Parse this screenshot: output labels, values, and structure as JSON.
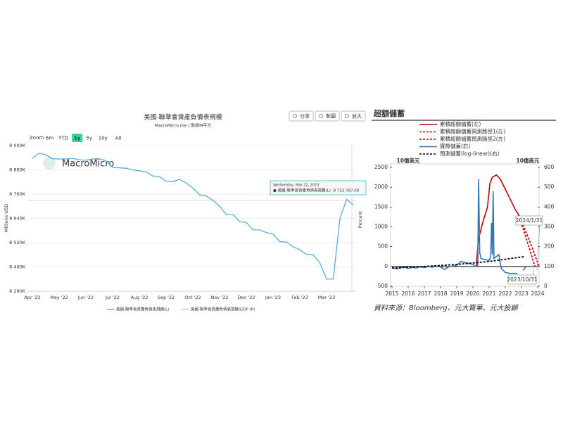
{
  "chart_data": [
    {
      "type": "line",
      "title": "美國-聯準會資產負債表規模",
      "subtitle": "MacroMicro.me | 財經M平方",
      "buttons": [
        "分享",
        "製圖",
        "放大"
      ],
      "zoom": {
        "label": "Zoom",
        "options": [
          "6m",
          "YTD",
          "1y",
          "5y",
          "10y",
          "All"
        ],
        "selected": 2
      },
      "watermark": "MacroMicro",
      "ylabel": "Millions USD",
      "y2label": "Percent",
      "categories": [
        "Apr '22",
        null,
        null,
        null,
        "May '22",
        null,
        null,
        null,
        "Jun '22",
        null,
        null,
        null,
        "Jul '22",
        null,
        null,
        null,
        "Aug '22",
        null,
        null,
        null,
        "Sep '22",
        null,
        null,
        null,
        "Oct '22",
        null,
        null,
        null,
        "Nov '22",
        null,
        null,
        null,
        "Dec '22",
        null,
        null,
        null,
        "Jan '23",
        null,
        null,
        null,
        "Feb '23",
        null,
        null,
        null,
        "Mar '23",
        null,
        null,
        null,
        null
      ],
      "series": [
        {
          "name": "美國-聯準會資產負債表規模(L)",
          "color": "#55aed9",
          "values": [
            8937000,
            8962000,
            8955000,
            8935000,
            8934000,
            8934000,
            8937000,
            8930000,
            8927000,
            8934000,
            8935000,
            8925000,
            8892000,
            8890000,
            8888000,
            8880000,
            8875000,
            8870000,
            8850000,
            8847000,
            8823000,
            8822000,
            8833000,
            8815000,
            8790000,
            8757000,
            8752000,
            8729000,
            8700000,
            8660000,
            8660000,
            8624000,
            8620000,
            8583000,
            8583000,
            8570000,
            8562000,
            8525000,
            8523000,
            8500000,
            8485000,
            8462000,
            8460000,
            8420000,
            8340000,
            8340000,
            8639000,
            8733787,
            8706000
          ]
        },
        {
          "name": "美國-聯準會資產負債表規模/GDP (R)",
          "color": "#cccccc",
          "visible": false
        }
      ],
      "ylim": [
        8280000,
        9000000
      ],
      "yticks": [
        {
          "value": 8280000,
          "label": "8 280K"
        },
        {
          "value": 8400000,
          "label": "8 400K"
        },
        {
          "value": 8520000,
          "label": "8 520K"
        },
        {
          "value": 8640000,
          "label": "8 640K"
        },
        {
          "value": 8760000,
          "label": "8 760K"
        },
        {
          "value": 8880000,
          "label": "8 880K"
        },
        {
          "value": 9000000,
          "label": "9 000K"
        }
      ],
      "grid": true,
      "tooltip": {
        "title": "Wednesday, Mar 22, 2023",
        "text": "● 美國-聯準會資產負債表規模(L): 8 733 787.00"
      }
    },
    {
      "type": "line",
      "title": "超額儲蓄",
      "ylabel": "10億美元",
      "y2label": "10億美元",
      "source": "資料來源：Bloomberg、元大寶華、元大投顧",
      "series": [
        {
          "name": "累積超額儲蓄(左)",
          "color": "#c00000",
          "dash": false,
          "x": [
            2020.2,
            2020.35,
            2020.6,
            2020.9,
            2021.05,
            2021.2,
            2021.45,
            2021.7,
            2022.0,
            2022.3,
            2022.6,
            2022.83
          ],
          "values": [
            0,
            700,
            1100,
            1500,
            2100,
            2250,
            2310,
            2200,
            1950,
            1700,
            1450,
            1300
          ]
        },
        {
          "name": "累積超額儲蓄預測路徑1(左)",
          "color": "#c00000",
          "dash": true,
          "x": [
            2022.83,
            2023.5,
            2024.08
          ],
          "values": [
            1300,
            650,
            0
          ]
        },
        {
          "name": "累積超額儲蓄預測路徑2(左)",
          "color": "#c00000",
          "dash": true,
          "x": [
            2022.83,
            2023.3,
            2023.83
          ],
          "values": [
            1300,
            700,
            0
          ]
        },
        {
          "name": "實際儲蓄(右)",
          "color": "#2e75b6",
          "dash": false,
          "axis": "y2",
          "x": [
            2015,
            2015.25,
            2015.5,
            2015.75,
            2016,
            2016.25,
            2016.5,
            2016.75,
            2017,
            2017.25,
            2017.5,
            2017.75,
            2018,
            2018.25,
            2018.5,
            2018.75,
            2019,
            2019.25,
            2019.5,
            2019.75,
            2020,
            2020.15,
            2020.3,
            2020.35,
            2020.42,
            2020.5,
            2020.75,
            2021,
            2021.1,
            2021.15,
            2021.2,
            2021.25,
            2021.3,
            2021.45,
            2021.6,
            2021.75,
            2022,
            2022.25,
            2022.5,
            2022.75,
            2023,
            2023.1,
            2023.3
          ],
          "values": [
            95,
            88,
            92,
            97,
            90,
            95,
            92,
            98,
            94,
            100,
            96,
            102,
            97,
            85,
            98,
            102,
            105,
            125,
            120,
            115,
            110,
            100,
            105,
            540,
            170,
            140,
            135,
            130,
            150,
            320,
            160,
            480,
            140,
            150,
            160,
            90,
            70,
            65,
            65,
            65,
            null,
            80,
            100
          ]
        },
        {
          "name": "預測儲蓄(log-linear)(右)",
          "color": "#000000",
          "dash": true,
          "axis": "y2",
          "x": [
            2015,
            2017,
            2019,
            2021,
            2023.2
          ],
          "values": [
            92,
            100,
            110,
            125,
            150
          ]
        }
      ],
      "xlim": [
        2015,
        2024
      ],
      "xticks": [
        2015,
        2016,
        2017,
        2018,
        2019,
        2020,
        2021,
        2022,
        2023,
        2024
      ],
      "ylim": [
        -500,
        2500
      ],
      "yticks": [
        -500,
        0,
        500,
        1000,
        1500,
        2000,
        2500
      ],
      "y2lim": [
        0,
        600
      ],
      "y2ticks": [
        0,
        100,
        200,
        300,
        400,
        500,
        600
      ],
      "annotations": [
        {
          "text": "2024/1/31"
        },
        {
          "text": "2023/10/31"
        }
      ]
    }
  ]
}
